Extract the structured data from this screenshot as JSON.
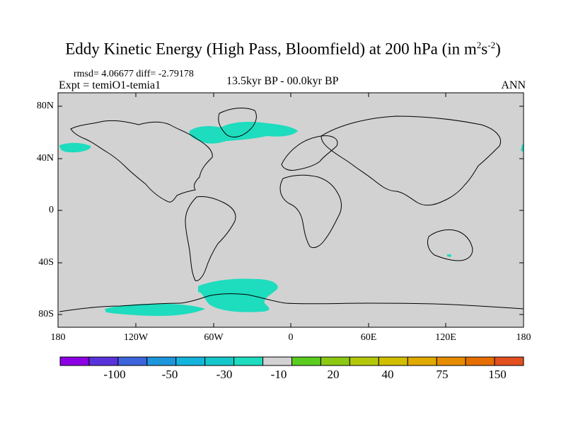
{
  "figure": {
    "title_main": "Eddy Kinetic Energy (High Pass, Bloomfield) at 200 hPa (in m",
    "title_unit_sup1": "2",
    "title_unit_mid": "s",
    "title_unit_sup2": "-2",
    "title_close": ")",
    "stats": "rmsd= 4.06677 diff= -2.79178",
    "experiment": "Expt = temiO1-temia1",
    "period": "13.5kyr BP - 00.0kyr BP",
    "season": "ANN"
  },
  "axes": {
    "lat_labels": [
      "80N",
      "40N",
      "0",
      "40S",
      "80S"
    ],
    "lon_labels": [
      "180",
      "120W",
      "60W",
      "0",
      "60E",
      "120E",
      "180"
    ]
  },
  "colorbar": {
    "colors": [
      "#8c00e6",
      "#5a32dc",
      "#3c64dc",
      "#1e96dc",
      "#14b4dc",
      "#14c8cc",
      "#1edcbe",
      "#d2d2d2",
      "#5acd1e",
      "#8cc814",
      "#b4c80a",
      "#d2be00",
      "#e1aa00",
      "#e68c00",
      "#e66e00",
      "#e1501e"
    ],
    "labels": [
      "-100",
      "-50",
      "-30",
      "-10",
      "20",
      "40",
      "75",
      "150"
    ]
  },
  "map": {
    "land_color": "#d2d2d2",
    "anomaly_color": "#1edcbe",
    "feature": "cyan (-10 to -30 m2/s2) anomalies over North Atlantic, North Pacific and Southern Ocean"
  }
}
